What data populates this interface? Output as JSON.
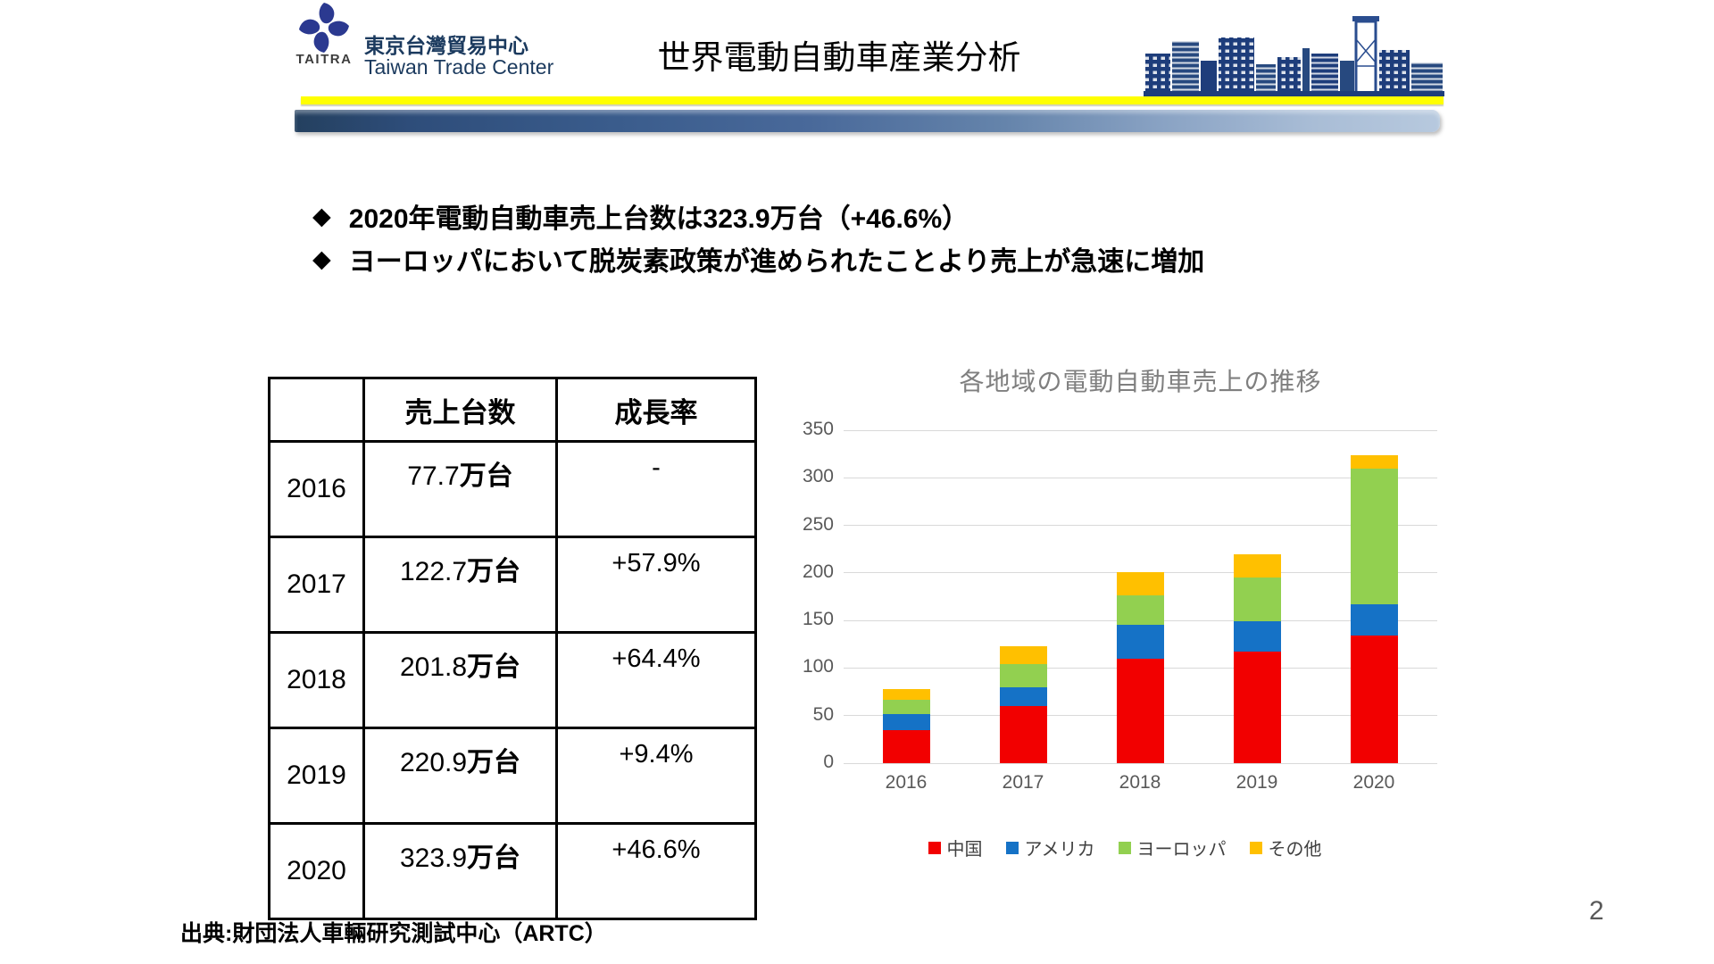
{
  "header": {
    "logo_text": "TAITRA",
    "org_zh": "東京台灣貿易中心",
    "org_en": "Taiwan Trade Center",
    "title": "世界電動自動車産業分析"
  },
  "bullet_marker": "◆",
  "bullets": [
    "2020年電動自動車売上台数は323.9万台（+46.6%）",
    "ヨーロッパにおいて脱炭素政策が進められたことより売上が急速に増加"
  ],
  "table": {
    "headers": [
      "",
      "売上台数",
      "成長率"
    ],
    "unit_suffix": "万台",
    "rows": [
      {
        "year": "2016",
        "sales": "77.7万台",
        "growth": "-"
      },
      {
        "year": "2017",
        "sales": "122.7万台",
        "growth": "+57.9%"
      },
      {
        "year": "2018",
        "sales": "201.8万台",
        "growth": "+64.4%"
      },
      {
        "year": "2019",
        "sales": "220.9万台",
        "growth": "+9.4%"
      },
      {
        "year": "2020",
        "sales": "323.9万台",
        "growth": "+46.6%"
      }
    ]
  },
  "chart_data": {
    "type": "bar",
    "stacked": true,
    "title": "各地域の電動自動車売上の推移",
    "categories": [
      "2016",
      "2017",
      "2018",
      "2019",
      "2020"
    ],
    "series": [
      {
        "name": "中国",
        "color": "#f20000",
        "values": [
          35,
          60,
          110,
          117,
          134
        ]
      },
      {
        "name": "アメリカ",
        "color": "#1572c6",
        "values": [
          17,
          20,
          35,
          32,
          33
        ]
      },
      {
        "name": "ヨーロッパ",
        "color": "#92d050",
        "values": [
          15,
          24,
          31,
          46,
          143
        ]
      },
      {
        "name": "その他",
        "color": "#ffc000",
        "values": [
          11,
          19,
          25,
          25,
          14
        ]
      }
    ],
    "totals": [
      77.7,
      122.7,
      201.8,
      220.9,
      323.9
    ],
    "ylim": [
      0,
      350
    ],
    "ytick_step": 50,
    "grid": true,
    "legend_position": "bottom",
    "xlabel": "",
    "ylabel": ""
  },
  "footer": {
    "source": "出典:財団法人車輛研究測試中心（ARTC）",
    "page_number": "2"
  },
  "colors": {
    "brand_blue": "#2b3990",
    "navy_text": "#1b3a5e",
    "divider_yellow": "#ffff00",
    "gradient_bar_left": "#24405f",
    "gradient_bar_right": "#b7c9de",
    "chart_title_gray": "#7f7f7f",
    "axis_gray": "#595959"
  }
}
